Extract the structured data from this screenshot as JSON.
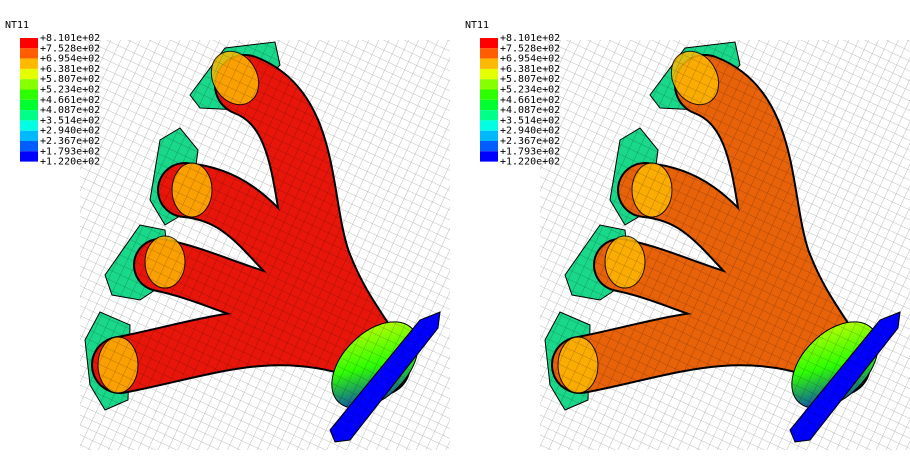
{
  "panels": [
    {
      "legend": {
        "title": "NT11",
        "labels": [
          "+8.101e+02",
          "+7.528e+02",
          "+6.954e+02",
          "+6.381e+02",
          "+5.807e+02",
          "+5.234e+02",
          "+4.661e+02",
          "+4.087e+02",
          "+3.514e+02",
          "+2.940e+02",
          "+2.367e+02",
          "+1.793e+02",
          "+1.220e+02"
        ],
        "colors": [
          "#ff0000",
          "#ff5d00",
          "#ffb900",
          "#e3ff00",
          "#88ff00",
          "#2eff00",
          "#00ff2e",
          "#00ff88",
          "#00ffe3",
          "#00b9ff",
          "#005dff",
          "#0000ff"
        ]
      }
    },
    {
      "legend": {
        "title": "NT11",
        "labels": [
          "+8.101e+02",
          "+7.528e+02",
          "+6.954e+02",
          "+6.381e+02",
          "+5.807e+02",
          "+5.234e+02",
          "+4.661e+02",
          "+4.087e+02",
          "+3.514e+02",
          "+2.940e+02",
          "+2.367e+02",
          "+1.793e+02",
          "+1.220e+02"
        ],
        "colors": [
          "#ff0000",
          "#ff5d00",
          "#ffb900",
          "#e3ff00",
          "#88ff00",
          "#2eff00",
          "#00ff2e",
          "#00ff88",
          "#00ffe3",
          "#00b9ff",
          "#005dff",
          "#0000ff"
        ]
      }
    }
  ]
}
